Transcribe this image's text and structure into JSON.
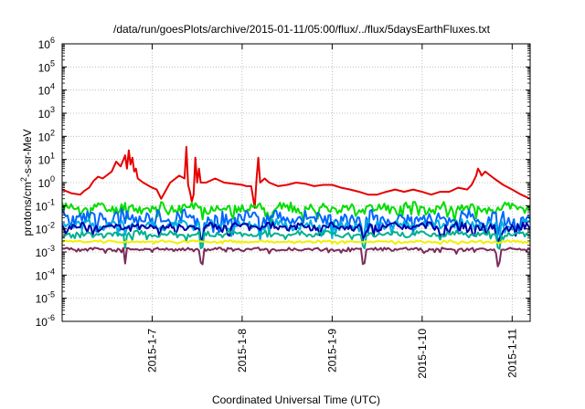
{
  "chart_data": {
    "type": "line",
    "title": "/data/run/goesPlots/archive/2015-01-11/05:00/flux/../flux/5daysEarthFluxes.txt",
    "xlabel": "Coordinated Universal Time (UTC)",
    "ylabel": {
      "prefix": "protons/cm",
      "sup": "2",
      "suffix": "-s-sr-MeV"
    },
    "yscale": "log",
    "ylim": [
      1e-06,
      1000000.0
    ],
    "xlim": [
      0.0,
      5.2
    ],
    "x_unit": "days",
    "grid": true,
    "y_ticks": [
      {
        "value": -6,
        "base": "10",
        "exp": "-6"
      },
      {
        "value": -5,
        "base": "10",
        "exp": "-5"
      },
      {
        "value": -4,
        "base": "10",
        "exp": "-4"
      },
      {
        "value": -3,
        "base": "10",
        "exp": "-3"
      },
      {
        "value": -2,
        "base": "10",
        "exp": "-2"
      },
      {
        "value": -1,
        "base": "10",
        "exp": "-1"
      },
      {
        "value": 0,
        "base": "10",
        "exp": "0"
      },
      {
        "value": 1,
        "base": "10",
        "exp": "1"
      },
      {
        "value": 2,
        "base": "10",
        "exp": "2"
      },
      {
        "value": 3,
        "base": "10",
        "exp": "3"
      },
      {
        "value": 4,
        "base": "10",
        "exp": "4"
      },
      {
        "value": 5,
        "base": "10",
        "exp": "5"
      },
      {
        "value": 6,
        "base": "10",
        "exp": "6"
      }
    ],
    "x_ticks": [
      {
        "value": 1.0,
        "label": "2015-1-7"
      },
      {
        "value": 2.0,
        "label": "2015-1-8"
      },
      {
        "value": 3.0,
        "label": "2015-1-9"
      },
      {
        "value": 4.0,
        "label": "2015-1-10"
      },
      {
        "value": 5.0,
        "label": "2015-1-11"
      }
    ],
    "series": [
      {
        "color": "#e60000",
        "x": [
          0.0,
          0.1,
          0.2,
          0.25,
          0.3,
          0.35,
          0.4,
          0.45,
          0.55,
          0.6,
          0.65,
          0.7,
          0.72,
          0.74,
          0.76,
          0.78,
          0.8,
          0.82,
          0.84,
          0.9,
          1.0,
          1.05,
          1.1,
          1.2,
          1.3,
          1.36,
          1.38,
          1.4,
          1.42,
          1.44,
          1.46,
          1.48,
          1.5,
          1.52,
          1.54,
          1.6,
          1.7,
          1.8,
          1.9,
          2.0,
          2.05,
          2.1,
          2.14,
          2.16,
          2.18,
          2.2,
          2.25,
          2.3,
          2.4,
          2.5,
          2.6,
          2.7,
          2.8,
          2.9,
          3.0,
          3.1,
          3.2,
          3.3,
          3.4,
          3.5,
          3.6,
          3.7,
          3.8,
          3.9,
          4.0,
          4.1,
          4.2,
          4.3,
          4.4,
          4.5,
          4.55,
          4.6,
          4.62,
          4.64,
          4.66,
          4.7,
          4.8,
          4.9,
          5.0,
          5.1,
          5.2
        ],
        "y": [
          0.5,
          0.35,
          0.3,
          0.45,
          0.6,
          1.2,
          1.8,
          1.5,
          3.0,
          8.0,
          5.0,
          15.0,
          4.0,
          25.0,
          6.0,
          12.0,
          3.0,
          4.0,
          1.5,
          1.0,
          0.6,
          0.5,
          0.2,
          1.0,
          2.0,
          1.5,
          35.0,
          0.8,
          0.4,
          0.15,
          0.3,
          12.0,
          1.0,
          4.0,
          1.0,
          1.0,
          1.5,
          1.0,
          0.9,
          0.8,
          0.7,
          0.7,
          0.08,
          1.5,
          12.0,
          1.0,
          1.5,
          1.0,
          0.7,
          0.8,
          1.0,
          0.9,
          0.7,
          0.8,
          0.8,
          0.6,
          0.5,
          0.4,
          0.3,
          0.3,
          0.4,
          0.5,
          0.4,
          0.5,
          0.4,
          0.3,
          0.4,
          0.4,
          0.6,
          0.5,
          0.8,
          2.0,
          4.0,
          3.0,
          2.0,
          3.0,
          1.5,
          0.8,
          0.5,
          0.3,
          0.2
        ]
      },
      {
        "color": "#00dd00",
        "base": 0.08,
        "amp": 0.4,
        "dips": [],
        "seed": 11
      },
      {
        "color": "#0066ff",
        "base": 0.03,
        "amp": 0.55,
        "dips": [
          0.7,
          1.55,
          2.2,
          3.0,
          3.35,
          4.85
        ],
        "seed": 23
      },
      {
        "color": "#00b0e0",
        "base": 0.015,
        "amp": 0.35,
        "dips": [
          0.7,
          1.55,
          2.2,
          3.0,
          3.35,
          4.85
        ],
        "seed": 37
      },
      {
        "color": "#0000aa",
        "base": 0.012,
        "amp": 0.3,
        "dips": [
          1.55,
          3.35,
          4.85
        ],
        "seed": 41
      },
      {
        "color": "#00b090",
        "base": 0.006,
        "amp": 0.2,
        "dips": [
          0.7,
          1.55,
          3.35,
          4.85
        ],
        "seed": 53
      },
      {
        "color": "#f0f000",
        "base": 0.0028,
        "amp": 0.08,
        "dips": [],
        "seed": 61
      },
      {
        "color": "#7a2a58",
        "base": 0.0013,
        "amp": 0.12,
        "dips": [
          0.7,
          1.55,
          3.35,
          4.85
        ],
        "seed": 73
      }
    ]
  }
}
